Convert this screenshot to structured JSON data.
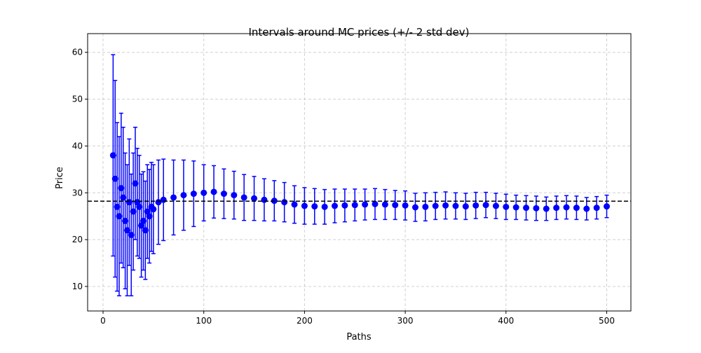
{
  "chart_data": {
    "type": "errorbar",
    "title": "Intervals around MC prices (+/- 2 std dev)",
    "x_label": "Paths",
    "y_label": "Price",
    "x": [
      10,
      12,
      14,
      16,
      18,
      20,
      22,
      24,
      26,
      28,
      30,
      32,
      34,
      36,
      38,
      40,
      42,
      44,
      46,
      48,
      50,
      55,
      60,
      70,
      80,
      90,
      100,
      110,
      120,
      130,
      140,
      150,
      160,
      170,
      180,
      190,
      200,
      210,
      220,
      230,
      240,
      250,
      260,
      270,
      280,
      290,
      300,
      310,
      320,
      330,
      340,
      350,
      360,
      370,
      380,
      390,
      400,
      410,
      420,
      430,
      440,
      450,
      460,
      470,
      480,
      490,
      500
    ],
    "values": [
      38,
      33,
      27,
      25,
      31,
      29,
      24,
      22,
      28,
      21,
      26,
      32,
      28,
      27,
      23,
      24,
      22,
      26,
      25,
      27,
      26.5,
      28,
      28.5,
      29,
      29.5,
      29.8,
      30,
      30.2,
      29.8,
      29.5,
      29,
      28.8,
      28.5,
      28.3,
      28,
      27.5,
      27.2,
      27.1,
      27,
      27.2,
      27.3,
      27.4,
      27.5,
      27.6,
      27.5,
      27.4,
      27.3,
      26.9,
      27,
      27.2,
      27.3,
      27.2,
      27.1,
      27.3,
      27.4,
      27.2,
      27,
      26.9,
      26.8,
      26.7,
      26.6,
      26.8,
      26.9,
      26.8,
      26.6,
      26.8,
      27.1
    ],
    "errors": [
      21.5,
      21,
      18,
      17,
      16,
      15,
      14.5,
      14,
      13.5,
      13,
      12.5,
      12,
      11.5,
      11,
      11,
      10.5,
      10.5,
      10,
      10,
      9.5,
      9.5,
      9,
      8.7,
      8,
      7.5,
      7,
      6,
      5.6,
      5.3,
      5.1,
      4.9,
      4.7,
      4.5,
      4.3,
      4.2,
      4,
      3.9,
      3.8,
      3.7,
      3.6,
      3.5,
      3.4,
      3.3,
      3.3,
      3.2,
      3.1,
      3.1,
      3,
      3,
      2.9,
      2.9,
      2.8,
      2.8,
      2.8,
      2.7,
      2.7,
      2.7,
      2.6,
      2.6,
      2.6,
      2.5,
      2.5,
      2.5,
      2.5,
      2.4,
      2.4,
      2.4
    ],
    "color": "blue",
    "hline": 28.2,
    "hline_color": "black",
    "xlim": [
      -15.3,
      524
    ],
    "ylim": [
      4.76,
      64
    ],
    "xticks": [
      0,
      100,
      200,
      300,
      400,
      500
    ],
    "yticks": [
      10,
      20,
      30,
      40,
      50,
      60
    ],
    "grid": true
  }
}
